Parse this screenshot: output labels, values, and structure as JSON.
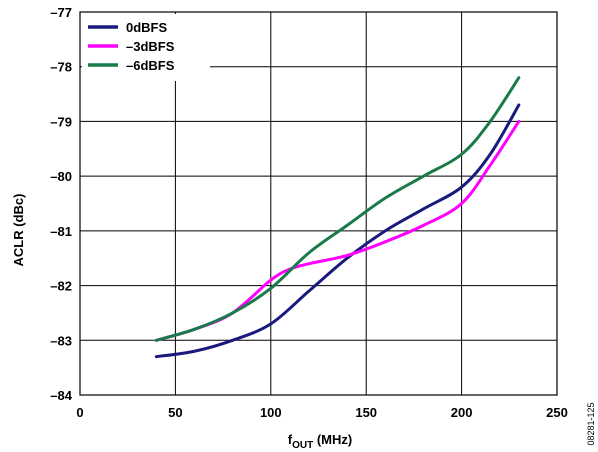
{
  "chart_data": {
    "type": "line",
    "xlabel_main": "f",
    "xlabel_sub": "OUT",
    "xlabel_suffix": " (MHz)",
    "ylabel": "ACLR (dBc)",
    "xlim": [
      0,
      250
    ],
    "ylim": [
      -84,
      -77
    ],
    "x_ticks": [
      0,
      50,
      100,
      150,
      200,
      250
    ],
    "x_tick_labels": [
      "0",
      "50",
      "100",
      "150",
      "200",
      "250"
    ],
    "y_ticks": [
      -77,
      -78,
      -79,
      -80,
      -81,
      -82,
      -83,
      -84
    ],
    "y_tick_labels": [
      "–77",
      "–78",
      "–79",
      "–80",
      "–81",
      "–82",
      "–83",
      "–84"
    ],
    "grid": true,
    "legend_position": "top-left",
    "series": [
      {
        "name": "0dBFS",
        "color": "#1a1a7e",
        "x": [
          40,
          60,
          80,
          100,
          120,
          140,
          160,
          180,
          200,
          215,
          230
        ],
        "y": [
          -83.3,
          -83.2,
          -83.0,
          -82.7,
          -82.1,
          -81.5,
          -81.0,
          -80.6,
          -80.2,
          -79.6,
          -78.7
        ]
      },
      {
        "name": "–3dBFS",
        "color": "#ff00ff",
        "x": [
          40,
          60,
          80,
          100,
          110,
          120,
          140,
          160,
          180,
          200,
          215,
          230
        ],
        "y": [
          -83.0,
          -82.8,
          -82.5,
          -81.9,
          -81.7,
          -81.6,
          -81.45,
          -81.2,
          -80.9,
          -80.5,
          -79.8,
          -79.0
        ]
      },
      {
        "name": "–6dBFS",
        "color": "#1a7a4a",
        "x": [
          40,
          60,
          80,
          100,
          120,
          140,
          160,
          180,
          200,
          215,
          230
        ],
        "y": [
          -83.0,
          -82.8,
          -82.5,
          -82.05,
          -81.4,
          -80.9,
          -80.4,
          -80.0,
          -79.6,
          -79.0,
          -78.2
        ]
      }
    ],
    "figure_id": "08281-125"
  }
}
